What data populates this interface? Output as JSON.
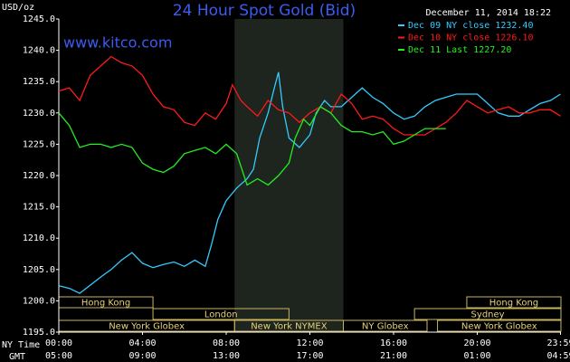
{
  "chart_data": {
    "type": "line",
    "title": "24 Hour Spot Gold (Bid)",
    "y_label": "USD/oz",
    "timestamp": "December 11, 2014 18:22",
    "watermark": "www.kitco.com",
    "x_label": "NY Time",
    "x2_label": "GMT",
    "ylim": [
      1195,
      1245
    ],
    "yticks": [
      {
        "value": 1195,
        "label": "1195.0"
      },
      {
        "value": 1200,
        "label": "1200.0"
      },
      {
        "value": 1205,
        "label": "1205.0"
      },
      {
        "value": 1210,
        "label": "1210.0"
      },
      {
        "value": 1215,
        "label": "1215.0"
      },
      {
        "value": 1220,
        "label": "1220.0"
      },
      {
        "value": 1225,
        "label": "1225.0"
      },
      {
        "value": 1230,
        "label": "1230.0"
      },
      {
        "value": 1235,
        "label": "1235.0"
      },
      {
        "value": 1240,
        "label": "1240.0"
      },
      {
        "value": 1245,
        "label": "1245.0"
      }
    ],
    "xlim": [
      0,
      24
    ],
    "xticks": [
      {
        "value": 0,
        "label": "00:00"
      },
      {
        "value": 4,
        "label": "04:00"
      },
      {
        "value": 8,
        "label": "08:00"
      },
      {
        "value": 12,
        "label": "12:00"
      },
      {
        "value": 16,
        "label": "16:00"
      },
      {
        "value": 20,
        "label": "20:00"
      },
      {
        "value": 23.98,
        "label": "23:59"
      }
    ],
    "x2ticks": [
      {
        "value": 0,
        "label": "05:00"
      },
      {
        "value": 4,
        "label": "09:00"
      },
      {
        "value": 8,
        "label": "13:00"
      },
      {
        "value": 12,
        "label": "17:00"
      },
      {
        "value": 16,
        "label": "21:00"
      },
      {
        "value": 20,
        "label": "01:00"
      },
      {
        "value": 23.98,
        "label": "04:59"
      }
    ],
    "grid": false,
    "highlight": [
      8.4,
      13.6
    ],
    "session_rows": [
      [
        {
          "name": "Hong Kong",
          "start": 0,
          "end": 4.5
        },
        {
          "name": "Hong Kong",
          "start": 19.5,
          "end": 24
        }
      ],
      [
        {
          "name": "London",
          "start": 4.5,
          "end": 11.0
        },
        {
          "name": "Sydney",
          "start": 17.0,
          "end": 24
        }
      ],
      [
        {
          "name": "New York Globex",
          "start": 0,
          "end": 8.4
        },
        {
          "name": "New York NYMEX",
          "start": 8.4,
          "end": 13.6
        },
        {
          "name": "NY Globex",
          "start": 13.6,
          "end": 17.6
        },
        {
          "name": "New York Globex",
          "start": 18.1,
          "end": 24
        }
      ]
    ],
    "series": [
      {
        "name": "Dec 09 NY close 1232.40",
        "color": "#33ccff",
        "x": [
          0,
          0.5,
          1,
          1.5,
          2,
          2.5,
          3,
          3.5,
          4,
          4.5,
          5,
          5.5,
          6,
          6.5,
          7,
          7.3,
          7.6,
          8,
          8.5,
          9,
          9.3,
          9.6,
          10,
          10.3,
          10.5,
          10.7,
          11,
          11.5,
          12,
          12.3,
          12.7,
          13,
          13.5,
          14,
          14.5,
          15,
          15.5,
          16,
          16.5,
          17,
          17.5,
          18,
          18.5,
          19,
          19.5,
          20,
          20.5,
          21,
          21.5,
          22,
          22.5,
          23,
          23.5,
          23.98
        ],
        "values": [
          1202.4,
          1202,
          1201.2,
          1202.5,
          1203.8,
          1205,
          1206.5,
          1207.7,
          1206,
          1205.3,
          1205.8,
          1206.2,
          1205.5,
          1206.5,
          1205.5,
          1209,
          1213,
          1216,
          1218,
          1219.5,
          1221,
          1226,
          1230,
          1234,
          1236.5,
          1231,
          1226,
          1224.5,
          1226.5,
          1230,
          1232,
          1231,
          1231,
          1232.5,
          1234,
          1232.5,
          1231.5,
          1230,
          1229,
          1229.5,
          1231,
          1232,
          1232.5,
          1233,
          1233,
          1233,
          1231.5,
          1230,
          1229.5,
          1229.5,
          1230.5,
          1231.5,
          1232,
          1233
        ]
      },
      {
        "name": "Dec 10 NY close 1226.10",
        "color": "#ff1a1a",
        "x": [
          0,
          0.5,
          1,
          1.5,
          2,
          2.5,
          3,
          3.5,
          4,
          4.5,
          5,
          5.5,
          6,
          6.5,
          7,
          7.5,
          8,
          8.3,
          8.7,
          9,
          9.5,
          10,
          10.5,
          11,
          11.5,
          12,
          12.5,
          13,
          13.5,
          14,
          14.5,
          15,
          15.5,
          16,
          16.5,
          17,
          17.5,
          18,
          18.5,
          19,
          19.5,
          20,
          20.5,
          21,
          21.5,
          22,
          22.5,
          23,
          23.5,
          23.98
        ],
        "values": [
          1233.5,
          1234,
          1232,
          1236,
          1237.5,
          1239,
          1238,
          1237.5,
          1236,
          1233,
          1231,
          1230.5,
          1228.5,
          1228,
          1230,
          1229,
          1231.5,
          1234.5,
          1232,
          1231,
          1229.5,
          1232,
          1230.5,
          1230,
          1228.5,
          1230,
          1231,
          1230,
          1233,
          1231.5,
          1229,
          1229.5,
          1229,
          1227.5,
          1226.5,
          1226.5,
          1226.5,
          1227.5,
          1228.5,
          1230,
          1232,
          1231,
          1230,
          1230.5,
          1231,
          1230,
          1230,
          1230.5,
          1230.5,
          1229.5
        ]
      },
      {
        "name": "Dec 11 Last 1227.20",
        "color": "#22ee22",
        "x": [
          0,
          0.5,
          1,
          1.5,
          2,
          2.5,
          3,
          3.5,
          4,
          4.5,
          5,
          5.5,
          6,
          6.5,
          7,
          7.5,
          8,
          8.5,
          8.7,
          9,
          9.5,
          10,
          10.5,
          11,
          11.3,
          11.7,
          12,
          12.5,
          13,
          13.5,
          14,
          14.5,
          15,
          15.5,
          16,
          16.5,
          17,
          17.5,
          18,
          18.5
        ],
        "values": [
          1230,
          1228,
          1224.5,
          1225,
          1225,
          1224.5,
          1225,
          1224.5,
          1222,
          1221,
          1220.5,
          1221.5,
          1223.5,
          1224,
          1224.5,
          1223.5,
          1225,
          1223.5,
          1221.5,
          1218.5,
          1219.5,
          1218.5,
          1220,
          1222,
          1226,
          1229,
          1228,
          1231,
          1230,
          1228,
          1227,
          1227,
          1226.5,
          1227,
          1225,
          1225.5,
          1226.5,
          1227.5,
          1227.5,
          1227.5
        ]
      }
    ]
  }
}
